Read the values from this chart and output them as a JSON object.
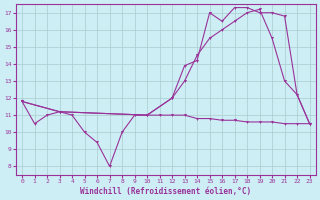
{
  "bg_color": "#ceeef5",
  "line_color": "#993399",
  "grid_color": "#aacccc",
  "xlabel": "Windchill (Refroidissement éolien,°C)",
  "xlim": [
    -0.5,
    23.5
  ],
  "ylim": [
    7.5,
    17.5
  ],
  "xticks": [
    0,
    1,
    2,
    3,
    4,
    5,
    6,
    7,
    8,
    9,
    10,
    11,
    12,
    13,
    14,
    15,
    16,
    17,
    18,
    19,
    20,
    21,
    22,
    23
  ],
  "yticks": [
    8,
    9,
    10,
    11,
    12,
    13,
    14,
    15,
    16,
    17
  ],
  "line1_x": [
    0,
    1,
    2,
    3,
    4,
    5,
    6,
    7,
    8,
    9,
    10,
    11,
    12,
    13,
    14,
    15,
    16,
    17,
    18,
    19,
    20,
    21,
    22,
    23
  ],
  "line1_y": [
    11.8,
    10.5,
    11.0,
    11.2,
    11.0,
    10.0,
    9.4,
    8.0,
    10.0,
    11.0,
    11.0,
    11.0,
    11.0,
    11.0,
    10.8,
    10.8,
    10.7,
    10.7,
    10.6,
    10.6,
    10.6,
    10.5,
    10.5,
    10.5
  ],
  "line2_x": [
    0,
    3,
    10,
    12,
    13,
    14,
    15,
    16,
    17,
    18,
    19,
    20,
    21,
    22,
    23
  ],
  "line2_y": [
    11.8,
    11.2,
    11.0,
    12.0,
    13.9,
    14.2,
    17.0,
    16.5,
    17.3,
    17.3,
    17.0,
    17.0,
    16.8,
    12.2,
    10.5
  ],
  "line3_x": [
    0,
    3,
    10,
    12,
    13,
    14,
    15,
    16,
    17,
    18,
    19,
    20,
    21,
    22,
    23
  ],
  "line3_y": [
    11.8,
    11.2,
    11.0,
    12.0,
    13.0,
    14.5,
    15.5,
    16.0,
    16.5,
    17.0,
    17.2,
    15.5,
    13.0,
    12.2,
    10.5
  ]
}
